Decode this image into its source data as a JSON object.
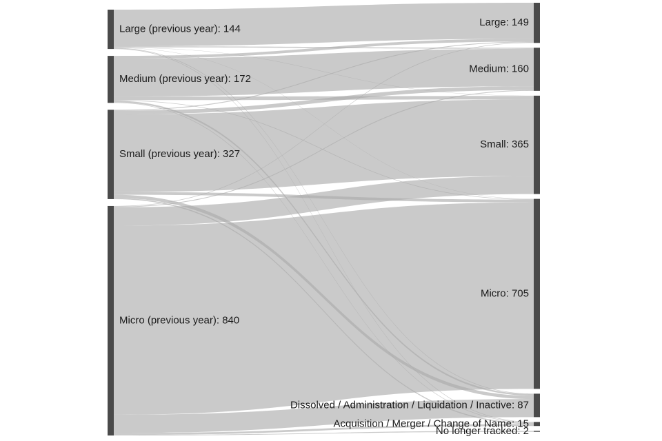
{
  "chart_data": {
    "type": "sankey",
    "colors": {
      "node": "#4a4a4a",
      "link": "#a9a9a9",
      "text": "#1a1a1a"
    },
    "source_nodes": [
      {
        "id": "large_prev",
        "label": "Large (previous year): 144",
        "value": 144
      },
      {
        "id": "medium_prev",
        "label": "Medium (previous year): 172",
        "value": 172
      },
      {
        "id": "small_prev",
        "label": "Small (previous year): 327",
        "value": 327
      },
      {
        "id": "micro_prev",
        "label": "Micro (previous year): 840",
        "value": 840
      }
    ],
    "target_nodes": [
      {
        "id": "large",
        "label": "Large: 149",
        "value": 149
      },
      {
        "id": "medium",
        "label": "Medium: 160",
        "value": 160
      },
      {
        "id": "small",
        "label": "Small: 365",
        "value": 365
      },
      {
        "id": "micro",
        "label": "Micro: 705",
        "value": 705
      },
      {
        "id": "dissolved",
        "label": "Dissolved / Administration / Liquidation / Inactive: 87",
        "value": 87
      },
      {
        "id": "acquisition",
        "label": "Acquisition / Merger / Change of Name: 15",
        "value": 15
      },
      {
        "id": "untracked",
        "label": "No longer tracked: 2",
        "value": 2
      }
    ],
    "flows": [
      {
        "source": "large_prev",
        "target": "large",
        "value": 134
      },
      {
        "source": "large_prev",
        "target": "medium",
        "value": 4
      },
      {
        "source": "large_prev",
        "target": "small",
        "value": 1
      },
      {
        "source": "large_prev",
        "target": "micro",
        "value": 1
      },
      {
        "source": "large_prev",
        "target": "dissolved",
        "value": 2
      },
      {
        "source": "large_prev",
        "target": "acquisition",
        "value": 2
      },
      {
        "source": "medium_prev",
        "target": "large",
        "value": 10
      },
      {
        "source": "medium_prev",
        "target": "medium",
        "value": 139
      },
      {
        "source": "medium_prev",
        "target": "small",
        "value": 13
      },
      {
        "source": "medium_prev",
        "target": "micro",
        "value": 2
      },
      {
        "source": "medium_prev",
        "target": "dissolved",
        "value": 6
      },
      {
        "source": "medium_prev",
        "target": "acquisition",
        "value": 2
      },
      {
        "source": "small_prev",
        "target": "large",
        "value": 3
      },
      {
        "source": "small_prev",
        "target": "medium",
        "value": 14
      },
      {
        "source": "small_prev",
        "target": "small",
        "value": 284
      },
      {
        "source": "small_prev",
        "target": "micro",
        "value": 10
      },
      {
        "source": "small_prev",
        "target": "dissolved",
        "value": 12
      },
      {
        "source": "small_prev",
        "target": "acquisition",
        "value": 4
      },
      {
        "source": "micro_prev",
        "target": "large",
        "value": 2
      },
      {
        "source": "micro_prev",
        "target": "medium",
        "value": 3
      },
      {
        "source": "micro_prev",
        "target": "small",
        "value": 67
      },
      {
        "source": "micro_prev",
        "target": "micro",
        "value": 692
      },
      {
        "source": "micro_prev",
        "target": "dissolved",
        "value": 67
      },
      {
        "source": "micro_prev",
        "target": "acquisition",
        "value": 7
      },
      {
        "source": "micro_prev",
        "target": "untracked",
        "value": 2
      }
    ]
  }
}
